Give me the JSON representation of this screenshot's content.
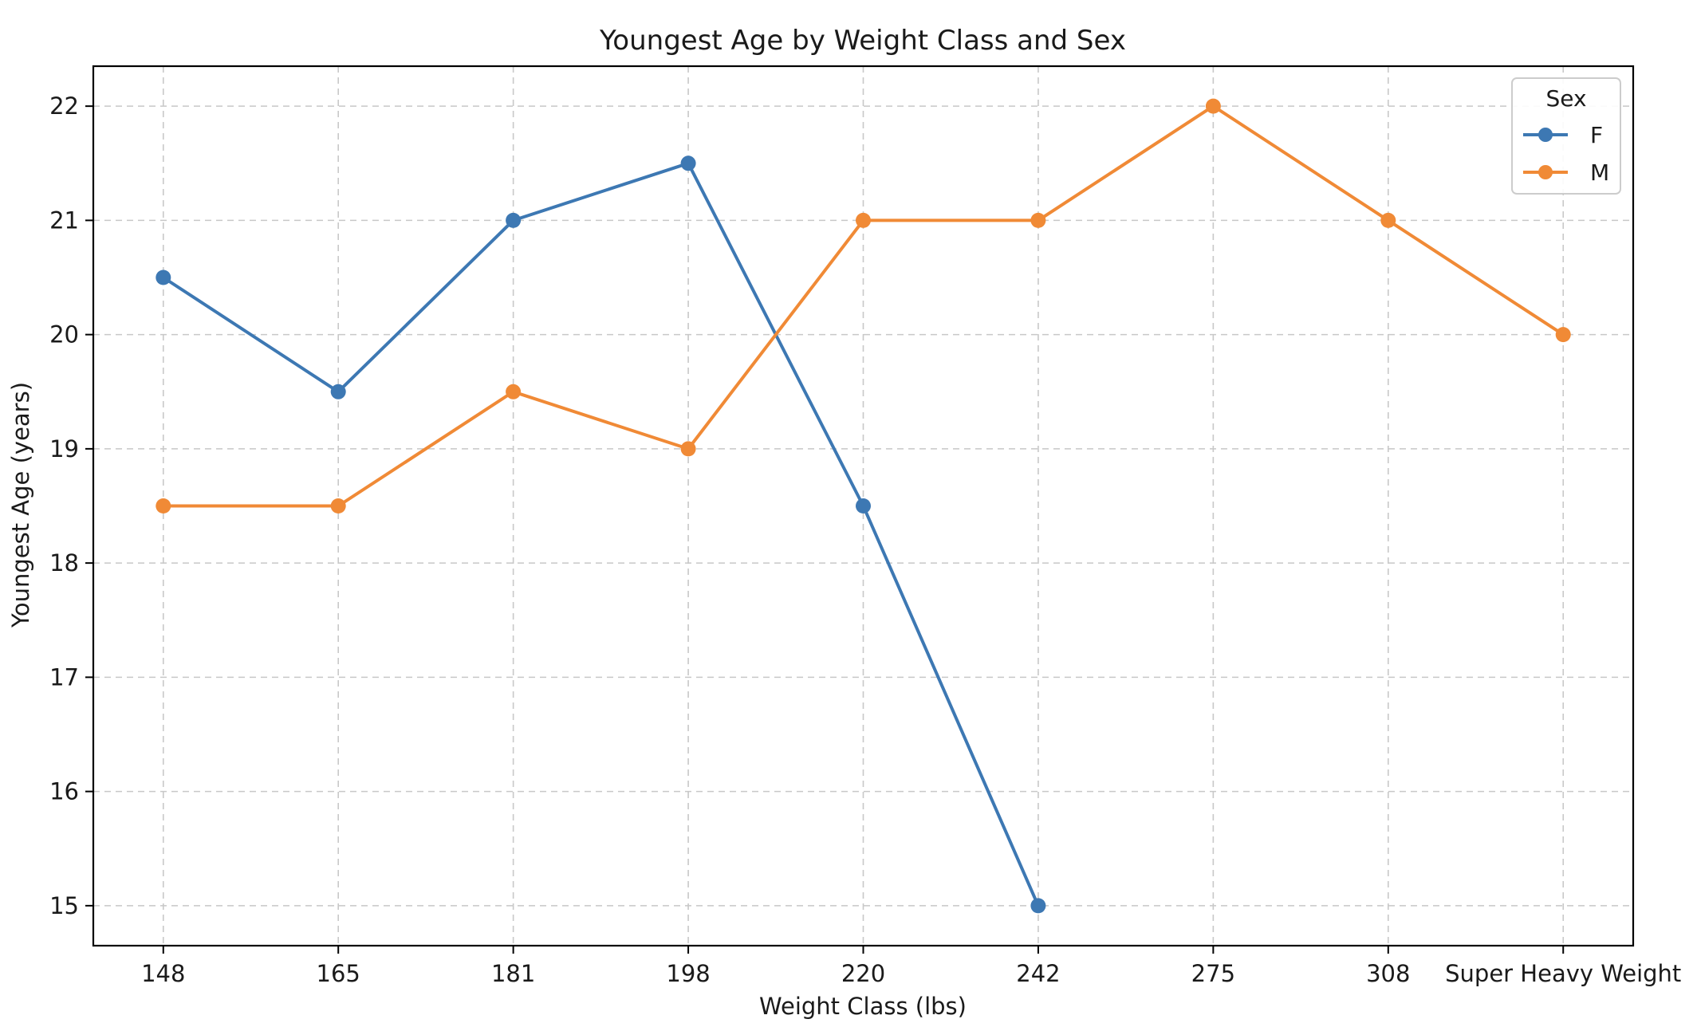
{
  "chart_data": {
    "type": "line",
    "title": "Youngest Age by Weight Class and Sex",
    "xlabel": "Weight Class (lbs)",
    "ylabel": "Youngest Age (years)",
    "categories": [
      "148",
      "165",
      "181",
      "198",
      "220",
      "242",
      "275",
      "308",
      "Super Heavy Weight"
    ],
    "yticks": [
      15,
      16,
      17,
      18,
      19,
      20,
      21,
      22
    ],
    "ylim": [
      14.65,
      22.35
    ],
    "grid": true,
    "legend": {
      "title": "Sex",
      "placement": "top-right"
    },
    "series": [
      {
        "name": "F",
        "color": "#3d78b3",
        "values": [
          20.5,
          19.5,
          21,
          21.5,
          18.5,
          15,
          null,
          null,
          null
        ]
      },
      {
        "name": "M",
        "color": "#f08a36",
        "values": [
          18.5,
          18.5,
          19.5,
          19,
          21,
          21,
          22,
          21,
          20
        ]
      }
    ]
  }
}
